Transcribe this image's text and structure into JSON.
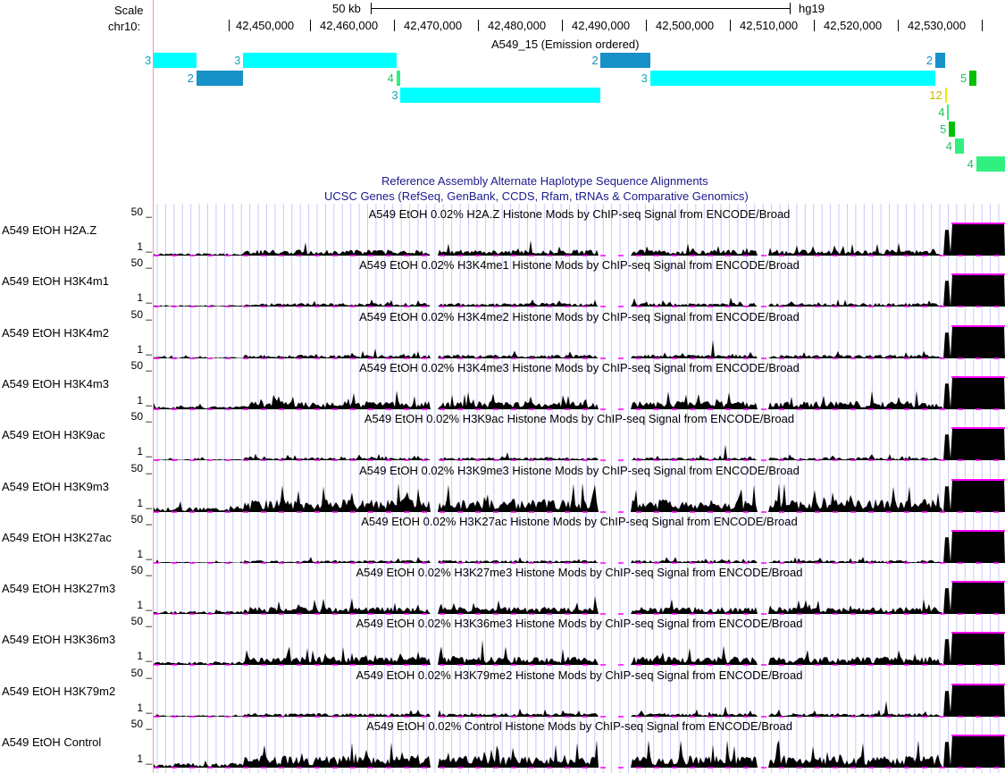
{
  "header": {
    "scale_label": "Scale",
    "chrom_label": "chr10:",
    "scale_bar_text": "50 kb",
    "assembly": "hg19"
  },
  "coordinates": [
    "42,450,000",
    "42,460,000",
    "42,470,000",
    "42,480,000",
    "42,490,000",
    "42,500,000",
    "42,510,000",
    "42,520,000",
    "42,530,000"
  ],
  "chromhmm": {
    "title": "A549_15 (Emission ordered)",
    "segments": [
      {
        "state": "3",
        "color": "#00ffff",
        "row": 0,
        "start": 0.0,
        "end": 0.05
      },
      {
        "state": "2",
        "color": "#1890c8",
        "row": 1,
        "start": 0.05,
        "end": 0.105
      },
      {
        "state": "3",
        "color": "#00ffff",
        "row": 0,
        "start": 0.105,
        "end": 0.285
      },
      {
        "state": "4",
        "color": "#30f080",
        "row": 1,
        "start": 0.285,
        "end": 0.29
      },
      {
        "state": "3",
        "color": "#00ffff",
        "row": 2,
        "start": 0.29,
        "end": 0.525
      },
      {
        "state": "2",
        "color": "#1890c8",
        "row": 0,
        "start": 0.525,
        "end": 0.583
      },
      {
        "state": "3",
        "color": "#00ffff",
        "row": 1,
        "start": 0.583,
        "end": 0.918
      },
      {
        "state": "2",
        "color": "#1890c8",
        "row": 0,
        "start": 0.918,
        "end": 0.93
      },
      {
        "state": "12",
        "color": "#e8e800",
        "row": 2,
        "start": 0.93,
        "end": 0.932
      },
      {
        "state": "4",
        "color": "#30f080",
        "row": 3,
        "start": 0.932,
        "end": 0.934
      },
      {
        "state": "5",
        "color": "#00c000",
        "row": 4,
        "start": 0.934,
        "end": 0.941
      },
      {
        "state": "4",
        "color": "#30f080",
        "row": 5,
        "start": 0.941,
        "end": 0.952
      },
      {
        "state": "5",
        "color": "#00c000",
        "row": 1,
        "start": 0.958,
        "end": 0.966
      },
      {
        "state": "4",
        "color": "#30f080",
        "row": 6,
        "start": 0.966,
        "end": 1.0
      }
    ]
  },
  "group_titles": [
    "Reference Assembly Alternate Haplotype Sequence Alignments",
    "UCSC Genes (RefSeq, GenBank, CCDS, Rfam, tRNAs & Comparative Genomics)"
  ],
  "axis": {
    "max": "50 _",
    "min": "1 _"
  },
  "colors": {
    "signal": "#000000",
    "baseline": "#ff00ff",
    "grid": "#c8c8ff",
    "group_title": "#1a1a8c"
  },
  "tracks": [
    {
      "label": "A549 EtOH H2A.Z",
      "title": "A549 EtOH 0.02% H2A.Z Histone Mods by ChIP-seq Signal from ENCODE/Broad",
      "level": 0.25,
      "seed": 11
    },
    {
      "label": "A549 EtOH H3K4m1",
      "title": "A549 EtOH 0.02% H3K4me1 Histone Mods by ChIP-seq Signal from ENCODE/Broad",
      "level": 0.15,
      "seed": 23
    },
    {
      "label": "A549 EtOH H3K4m2",
      "title": "A549 EtOH 0.02% H3K4me2 Histone Mods by ChIP-seq Signal from ENCODE/Broad",
      "level": 0.15,
      "seed": 37
    },
    {
      "label": "A549 EtOH H3K4m3",
      "title": "A549 EtOH 0.02% H3K4me3 Histone Mods by ChIP-seq Signal from ENCODE/Broad",
      "level": 0.35,
      "seed": 41
    },
    {
      "label": "A549 EtOH H3K9ac",
      "title": "A549 EtOH 0.02% H3K9ac Histone Mods by ChIP-seq Signal from ENCODE/Broad",
      "level": 0.12,
      "seed": 53
    },
    {
      "label": "A549 EtOH H3K9m3",
      "title": "A549 EtOH 0.02% H3K9me3 Histone Mods by ChIP-seq Signal from ENCODE/Broad",
      "level": 0.55,
      "seed": 67
    },
    {
      "label": "A549 EtOH H3K27ac",
      "title": "A549 EtOH 0.02% H3K27ac Histone Mods by ChIP-seq Signal from ENCODE/Broad",
      "level": 0.12,
      "seed": 71
    },
    {
      "label": "A549 EtOH H3K27m3",
      "title": "A549 EtOH 0.02% H3K27me3 Histone Mods by ChIP-seq Signal from ENCODE/Broad",
      "level": 0.3,
      "seed": 83
    },
    {
      "label": "A549 EtOH H3K36m3",
      "title": "A549 EtOH 0.02% H3K36me3 Histone Mods by ChIP-seq Signal from ENCODE/Broad",
      "level": 0.35,
      "seed": 97
    },
    {
      "label": "A549 EtOH H3K79m2",
      "title": "A549 EtOH 0.02% H3K79me2 Histone Mods by ChIP-seq Signal from ENCODE/Broad",
      "level": 0.15,
      "seed": 101
    },
    {
      "label": "A549 EtOH Control",
      "title": "A549 EtOH 0.02% Control Histone Mods by ChIP-seq Signal from ENCODE/Broad",
      "level": 0.5,
      "seed": 113
    }
  ]
}
